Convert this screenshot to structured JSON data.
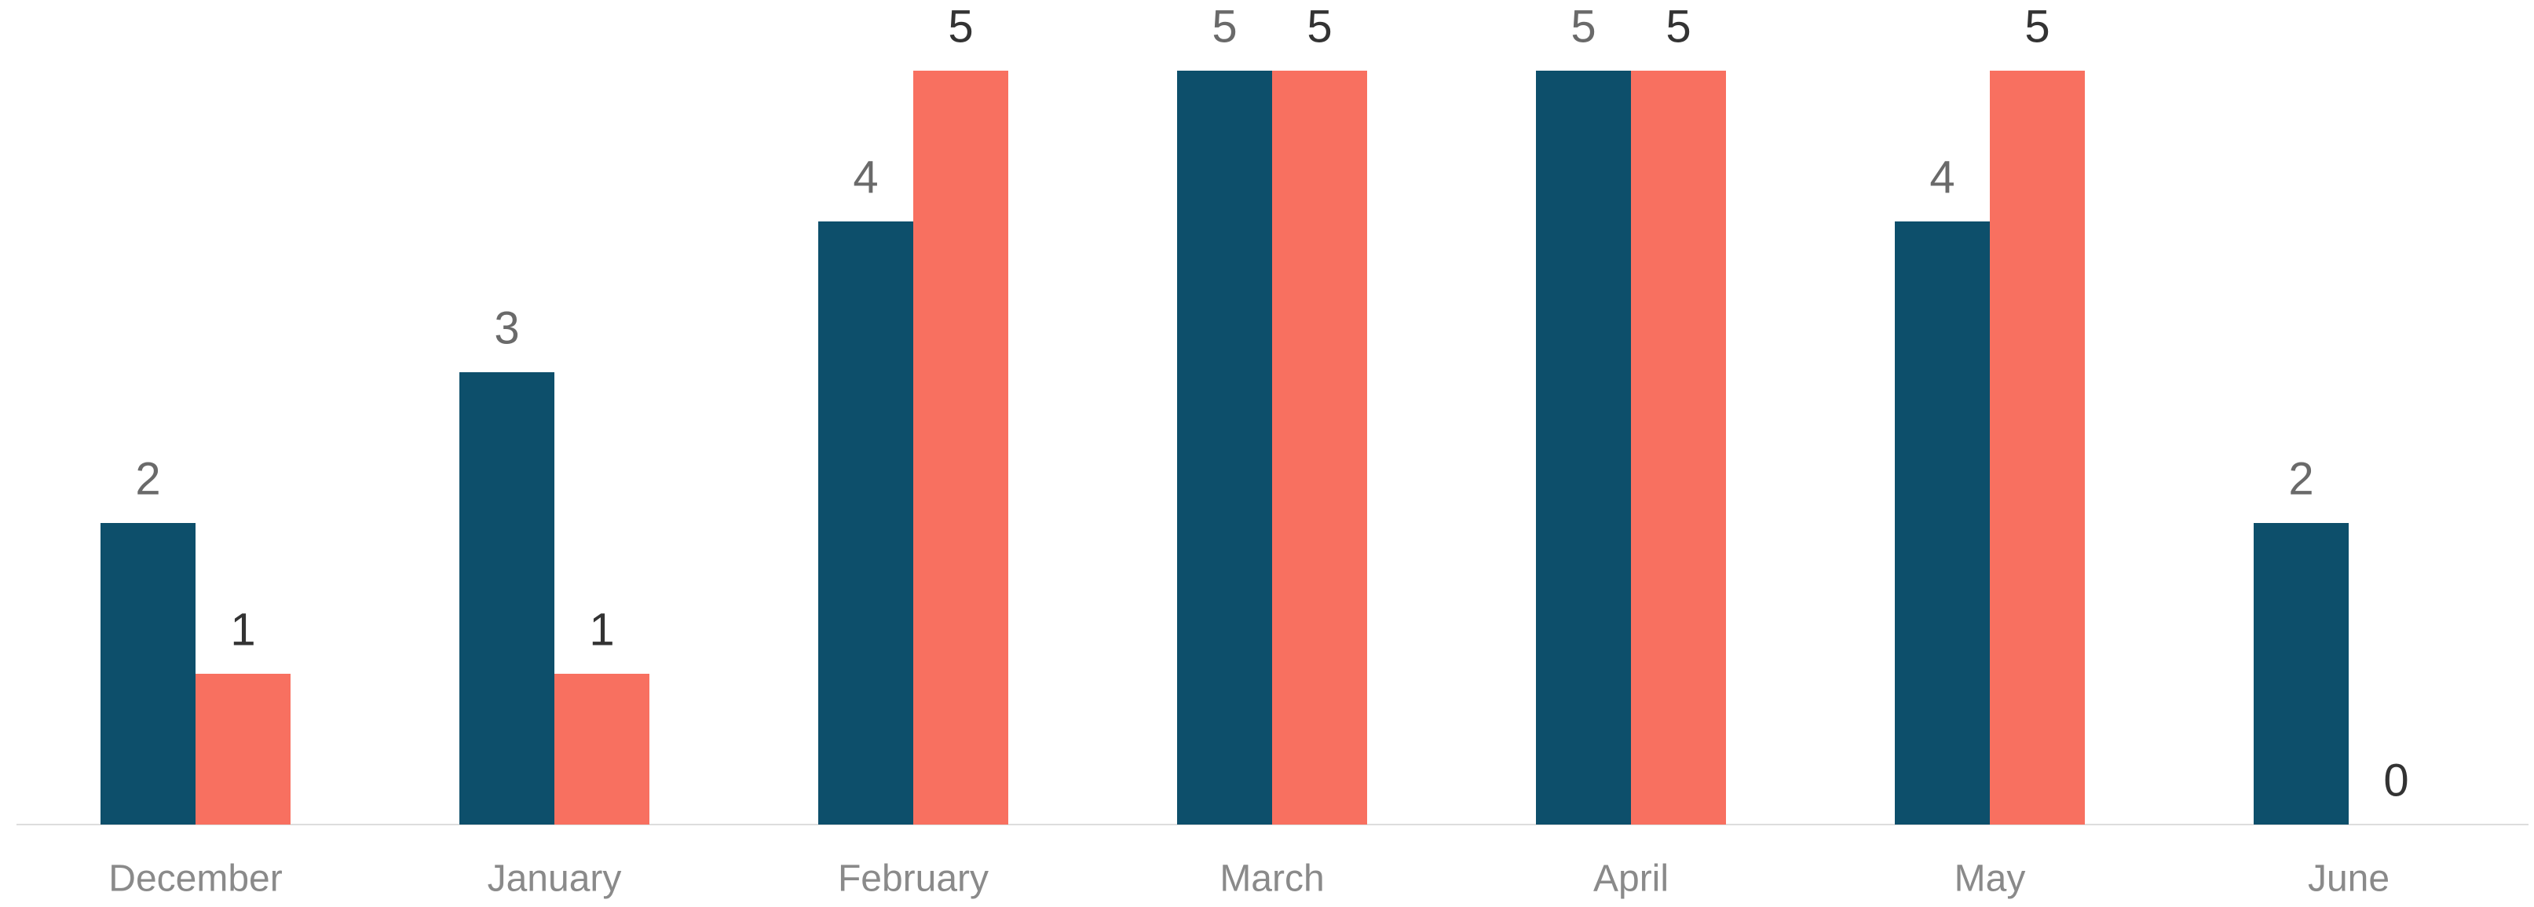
{
  "chart_data": {
    "type": "bar",
    "categories": [
      "December",
      "January",
      "February",
      "March",
      "April",
      "May",
      "June"
    ],
    "series": [
      {
        "color": "#0d4f6b",
        "values": [
          2,
          3,
          4,
          5,
          5,
          4,
          2
        ]
      },
      {
        "color": "#f87060",
        "values": [
          1,
          1,
          5,
          5,
          5,
          5,
          0
        ]
      }
    ],
    "ylim": [
      0,
      5
    ]
  }
}
